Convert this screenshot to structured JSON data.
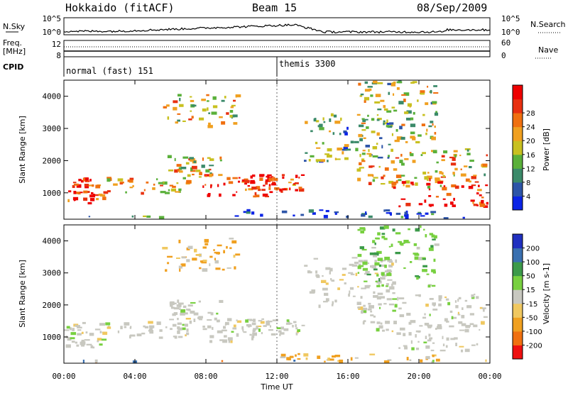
{
  "header": {
    "station": "Hokkaido (fitACF)",
    "beam": "Beam 15",
    "date": "08/Sep/2009"
  },
  "strip_panels": {
    "nsky": {
      "label": "N.Sky",
      "ticks_left": [
        "10^5",
        "10^0"
      ],
      "right_label": "N.Search",
      "ticks_right": [
        "10^5",
        "10^0"
      ]
    },
    "freq": {
      "label": "Freq.",
      "unit": "[MHz]",
      "ticks_left": [
        "12",
        "8"
      ],
      "right_label": "Nave",
      "ticks_right": [
        "60",
        "0"
      ]
    },
    "cpid": {
      "label": "CPID",
      "modes": [
        {
          "name": "normal (fast) 151",
          "start_hour": 0
        },
        {
          "name": "themis 3300",
          "start_hour": 12
        }
      ]
    }
  },
  "chart_data": [
    {
      "type": "heatmap",
      "panel": "power",
      "ylabel": "Slant Range [km]",
      "ylim": [
        180,
        4500
      ],
      "yticks": [
        "1000",
        "2000",
        "3000",
        "4000"
      ],
      "xlim_hours": [
        0,
        24
      ],
      "colorbar": {
        "label": "Power [dB]",
        "ticks": [
          "4",
          "8",
          "12",
          "16",
          "20",
          "24",
          "28"
        ],
        "colors": [
          "#0b24e6",
          "#2d55a8",
          "#3b8a6a",
          "#5ab03a",
          "#c8c020",
          "#f0a020",
          "#f07010",
          "#e83010",
          "#ee0000"
        ]
      },
      "regions": [
        {
          "t": [
            0.0,
            2.2
          ],
          "r": [
            700,
            1500
          ],
          "level": 0.85
        },
        {
          "t": [
            2.2,
            7.0
          ],
          "r": [
            1000,
            1500
          ],
          "level": 0.6
        },
        {
          "t": [
            5.8,
            8.8
          ],
          "r": [
            1500,
            2200
          ],
          "level": 0.55
        },
        {
          "t": [
            7.8,
            11.8
          ],
          "r": [
            900,
            1600
          ],
          "level": 0.9
        },
        {
          "t": [
            5.5,
            9.8
          ],
          "r": [
            3100,
            4100
          ],
          "level": 0.55
        },
        {
          "t": [
            10.0,
            13.5
          ],
          "r": [
            1100,
            1600
          ],
          "level": 0.8
        },
        {
          "t": [
            13.5,
            18.5
          ],
          "r": [
            2000,
            3500
          ],
          "level": 0.35
        },
        {
          "t": [
            16.5,
            24.0
          ],
          "r": [
            1200,
            2400
          ],
          "level": 0.6
        },
        {
          "t": [
            18.5,
            24.0
          ],
          "r": [
            600,
            1400
          ],
          "level": 0.9
        },
        {
          "t": [
            16.5,
            21.0
          ],
          "r": [
            2600,
            4500
          ],
          "level": 0.45
        },
        {
          "t": [
            9.0,
            21.0
          ],
          "r": [
            250,
            500
          ],
          "level": 0.2
        },
        {
          "t": [
            0.0,
            24.0
          ],
          "r": [
            180,
            300
          ],
          "level": 0.3
        }
      ]
    },
    {
      "type": "heatmap",
      "panel": "velocity",
      "ylabel": "Slant Range [km]",
      "ylim": [
        180,
        4500
      ],
      "yticks": [
        "1000",
        "2000",
        "3000",
        "4000"
      ],
      "xlim_hours": [
        0,
        24
      ],
      "xticks": [
        "00:00",
        "04:00",
        "08:00",
        "12:00",
        "16:00",
        "20:00",
        "00:00"
      ],
      "xlabel": "Time UT",
      "colorbar": {
        "label": "Velocity [m s-1]",
        "ticks": [
          "200",
          "100",
          "50",
          "15",
          "-15",
          "-50",
          "-100",
          "-200"
        ],
        "colors": [
          "#2030c0",
          "#3a70b0",
          "#3c9a4a",
          "#78d040",
          "#c8c8c0",
          "#f0c860",
          "#f0a020",
          "#f07010",
          "#ee1010"
        ]
      },
      "regions": [
        {
          "t": [
            0.0,
            2.2
          ],
          "r": [
            700,
            1500
          ],
          "kind": "gray"
        },
        {
          "t": [
            2.2,
            7.0
          ],
          "r": [
            1000,
            1500
          ],
          "kind": "gray"
        },
        {
          "t": [
            5.8,
            8.8
          ],
          "r": [
            1500,
            2200
          ],
          "kind": "gray"
        },
        {
          "t": [
            7.8,
            11.8
          ],
          "r": [
            900,
            1600
          ],
          "kind": "gray"
        },
        {
          "t": [
            5.5,
            9.8
          ],
          "r": [
            3100,
            4100
          ],
          "kind": "orange"
        },
        {
          "t": [
            10.0,
            13.5
          ],
          "r": [
            1100,
            1600
          ],
          "kind": "gray"
        },
        {
          "t": [
            13.5,
            18.5
          ],
          "r": [
            2000,
            3500
          ],
          "kind": "gray"
        },
        {
          "t": [
            16.5,
            24.0
          ],
          "r": [
            1200,
            2400
          ],
          "kind": "gray"
        },
        {
          "t": [
            18.5,
            24.0
          ],
          "r": [
            600,
            1400
          ],
          "kind": "gray"
        },
        {
          "t": [
            16.5,
            21.0
          ],
          "r": [
            2600,
            4500
          ],
          "kind": "green"
        },
        {
          "t": [
            12.0,
            21.0
          ],
          "r": [
            200,
            500
          ],
          "kind": "orange"
        },
        {
          "t": [
            0.0,
            24.0
          ],
          "r": [
            180,
            300
          ],
          "kind": "mixed"
        }
      ]
    }
  ]
}
